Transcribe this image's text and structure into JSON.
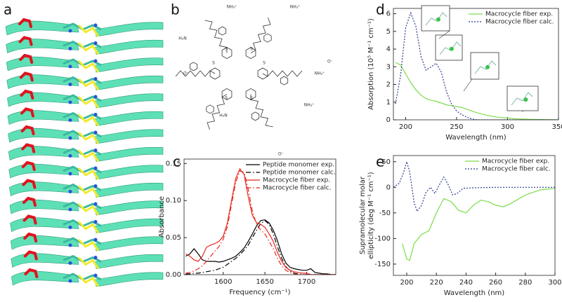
{
  "panel_labels": [
    "a",
    "b",
    "c",
    "d",
    "e"
  ],
  "structure_labels": [
    "H₂N",
    "NH₃⁺",
    "NH₃⁺",
    "NH₃⁺",
    "NH₃⁺",
    "O⁻",
    "O⁻",
    "O⁻",
    "H₃N",
    "S",
    "S",
    "S",
    "S",
    "S",
    "S"
  ],
  "chart_data": [
    {
      "type": "line",
      "x_label": "Frequency (cm⁻¹)",
      "y_label": [
        "Absorbance"
      ],
      "xlim": [
        1553,
        1735
      ],
      "xticks": [
        1600,
        1650,
        1700
      ],
      "ylim": [
        0,
        0.156
      ],
      "yticks": [
        {
          "value": 0,
          "label": "0.00"
        },
        {
          "value": 0.05,
          "label": "0.05"
        },
        {
          "value": 0.1,
          "label": "0.10"
        },
        {
          "value": 0.15,
          "label": "0.15"
        }
      ],
      "legend": "upper right",
      "x": [
        1555,
        1560,
        1565,
        1570,
        1575,
        1580,
        1585,
        1590,
        1595,
        1600,
        1605,
        1610,
        1615,
        1620,
        1625,
        1630,
        1635,
        1640,
        1645,
        1650,
        1655,
        1660,
        1665,
        1670,
        1675,
        1680,
        1685,
        1690,
        1695,
        1700,
        1705,
        1710,
        1715,
        1720,
        1725,
        1730,
        1735
      ],
      "series": [
        {
          "name": "Peptide monomer exp.",
          "color": "#000000",
          "dash": "solid",
          "values": [
            0.025,
            0.028,
            0.035,
            0.028,
            0.02,
            0.018,
            0.018,
            0.018,
            0.017,
            0.018,
            0.02,
            0.022,
            0.025,
            0.03,
            0.036,
            0.045,
            0.055,
            0.066,
            0.073,
            0.074,
            0.07,
            0.06,
            0.046,
            0.028,
            0.016,
            0.01,
            0.008,
            0.007,
            0.006,
            0.006,
            0.008,
            0.003,
            0.002,
            0.001,
            0.001,
            0,
            0
          ]
        },
        {
          "name": "Peptide monomer calc.",
          "color": "#000000",
          "dash": "dashdot",
          "values": [
            0.001,
            0.001,
            0.002,
            0.002,
            0.003,
            0.004,
            0.005,
            0.006,
            0.008,
            0.01,
            0.014,
            0.018,
            0.022,
            0.027,
            0.033,
            0.04,
            0.05,
            0.06,
            0.069,
            0.073,
            0.068,
            0.055,
            0.038,
            0.022,
            0.011,
            0.005,
            0.002,
            0.001,
            0,
            0,
            0,
            0,
            0,
            0,
            0,
            0,
            0
          ]
        },
        {
          "name": "Macrocycle fiber exp.",
          "color": "#e8261e",
          "dash": "solid",
          "values": [
            0.028,
            0.025,
            0.02,
            0.018,
            0.025,
            0.037,
            0.04,
            0.042,
            0.045,
            0.052,
            0.07,
            0.1,
            0.13,
            0.143,
            0.135,
            0.105,
            0.08,
            0.07,
            0.068,
            0.064,
            0.055,
            0.045,
            0.03,
            0.018,
            0.01,
            0.006,
            0.004,
            0.003,
            0.002,
            0.002,
            0,
            0,
            0,
            0,
            0,
            0,
            0
          ]
        },
        {
          "name": "Macrocycle fiber calc.",
          "color": "#e8261e",
          "dash": "dashdot",
          "values": [
            0.002,
            0.003,
            0.005,
            0.008,
            0.012,
            0.018,
            0.025,
            0.032,
            0.038,
            0.048,
            0.065,
            0.095,
            0.125,
            0.14,
            0.138,
            0.115,
            0.085,
            0.068,
            0.06,
            0.055,
            0.045,
            0.035,
            0.022,
            0.012,
            0.006,
            0.003,
            0.001,
            0,
            0,
            0,
            0,
            0,
            0,
            0,
            0,
            0,
            0
          ]
        }
      ]
    },
    {
      "type": "line",
      "x_label": "Wavelength (nm)",
      "y_label": [
        "Absorption (10⁵ M⁻¹ cm⁻¹)"
      ],
      "xlim": [
        188,
        350
      ],
      "xticks": [
        200,
        250,
        300,
        350
      ],
      "ylim": [
        0,
        6.3
      ],
      "yticks": [
        0,
        1,
        2,
        3,
        4,
        5,
        6
      ],
      "legend": "upper right",
      "x": [
        190,
        195,
        200,
        205,
        210,
        215,
        220,
        225,
        230,
        235,
        240,
        245,
        250,
        255,
        260,
        265,
        270,
        280,
        290,
        300,
        310,
        320,
        330,
        340,
        350
      ],
      "series": [
        {
          "name": "Macrocycle fiber exp.",
          "color": "#7ddc4a",
          "dash": "solid",
          "values": [
            3.25,
            3.1,
            2.6,
            2.1,
            1.7,
            1.4,
            1.2,
            1.1,
            1.05,
            0.95,
            0.85,
            0.8,
            0.75,
            0.7,
            0.6,
            0.5,
            0.4,
            0.25,
            0.15,
            0.1,
            0.05,
            0.03,
            0.02,
            0.01,
            0
          ]
        },
        {
          "name": "Macrocycle fiber calc.",
          "color": "#2b3a8f",
          "dash": "dotted",
          "values": [
            0.9,
            2.5,
            5.2,
            6.05,
            5.3,
            3.6,
            2.8,
            3.0,
            3.2,
            2.7,
            1.6,
            0.9,
            0.5,
            0.3,
            0.15,
            0.05,
            0,
            0,
            0,
            0,
            0,
            0,
            0,
            0,
            0
          ]
        }
      ]
    },
    {
      "type": "line",
      "x_label": "Wavelength (nm)",
      "y_label": [
        "Supramolecular molar",
        "ellipticity (deg M⁻¹ cm⁻¹)"
      ],
      "xlim": [
        191,
        300
      ],
      "xticks": [
        200,
        220,
        240,
        260,
        280,
        300
      ],
      "ylim": [
        -172,
        62
      ],
      "yticks": [
        50,
        0,
        -50,
        -100,
        -150
      ],
      "legend": "upper right",
      "series": [
        {
          "name": "Macrocycle fiber exp.",
          "color": "#7ddc4a",
          "dash": "solid",
          "x": [
            197,
            200,
            202,
            205,
            210,
            215,
            220,
            225,
            230,
            235,
            240,
            245,
            250,
            255,
            260,
            265,
            270,
            280,
            290,
            300
          ],
          "values": [
            -110,
            -140,
            -143,
            -110,
            -92,
            -85,
            -50,
            -22,
            -28,
            -45,
            -50,
            -35,
            -25,
            -28,
            -35,
            -38,
            -32,
            -15,
            -5,
            -2
          ]
        },
        {
          "name": "Macrocycle fiber calc.",
          "color": "#2b3a8f",
          "dash": "dotted",
          "x": [
            191,
            195,
            198,
            200,
            202,
            205,
            207,
            210,
            213,
            216,
            219,
            222,
            225,
            228,
            231,
            234,
            238,
            245,
            260,
            280,
            300
          ],
          "values": [
            0,
            8,
            30,
            50,
            30,
            -30,
            -47,
            -35,
            -10,
            0,
            -12,
            5,
            20,
            5,
            -15,
            -12,
            -2,
            -1,
            0,
            0,
            0
          ]
        }
      ]
    }
  ]
}
